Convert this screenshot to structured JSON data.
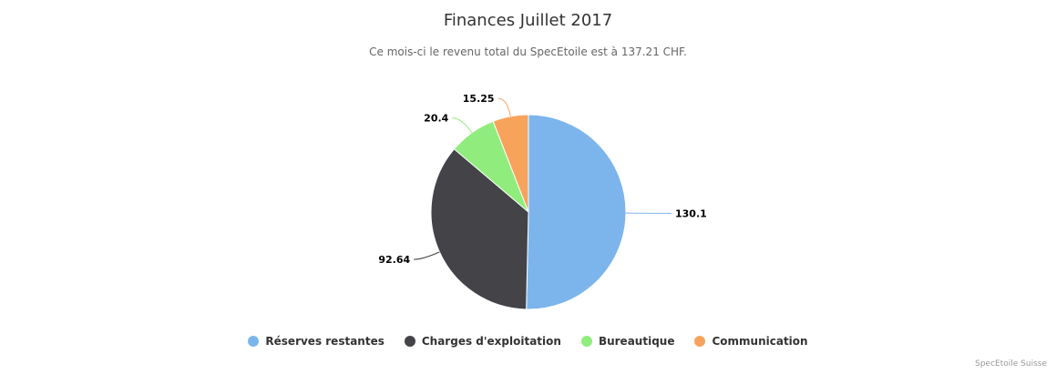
{
  "chart_data": {
    "type": "pie",
    "title": "Finances Juillet 2017",
    "subtitle": "Ce mois-ci le revenu total du SpecEtoile est à 137.21 CHF.",
    "categories": [
      "Réserves restantes",
      "Charges d'exploitation",
      "Bureautique",
      "Communication"
    ],
    "values": [
      130.1,
      92.64,
      20.4,
      15.25
    ],
    "value_labels": [
      "130.1",
      "92.64",
      "20.4",
      "15.25"
    ],
    "colors": [
      "#7cb5ec",
      "#434348",
      "#90ed7d",
      "#f7a35c"
    ],
    "legend_position": "bottom-center"
  },
  "credits": "SpecEtoile Suisse"
}
